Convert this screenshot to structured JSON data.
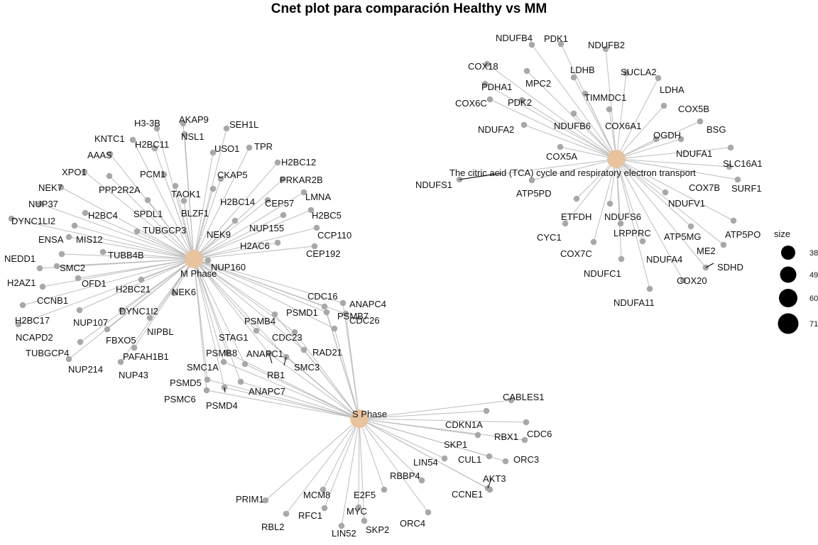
{
  "title": "Cnet plot para comparación Healthy vs MM",
  "colors": {
    "category": "#e8c39e",
    "gene": "#a8a8a8",
    "edge": "#bdbdbd"
  },
  "legend": {
    "title": "size",
    "values": [
      "38",
      "49",
      "60",
      "71"
    ]
  },
  "categories": [
    {
      "id": "M",
      "label": "M Phase"
    },
    {
      "id": "S",
      "label": "S Phase"
    },
    {
      "id": "T",
      "label": "The citric acid (TCA) cycle and respiratory electron transport"
    }
  ],
  "genes": [
    {
      "name": "H3-3B",
      "cats": [
        "M"
      ]
    },
    {
      "name": "AKAP9",
      "cats": [
        "M"
      ]
    },
    {
      "name": "SEH1L",
      "cats": [
        "M"
      ]
    },
    {
      "name": "KNTC1",
      "cats": [
        "M"
      ]
    },
    {
      "name": "NSL1",
      "cats": [
        "M"
      ]
    },
    {
      "name": "H2BC11",
      "cats": [
        "M"
      ]
    },
    {
      "name": "USO1",
      "cats": [
        "M"
      ]
    },
    {
      "name": "TPR",
      "cats": [
        "M"
      ]
    },
    {
      "name": "AAAS",
      "cats": [
        "M"
      ]
    },
    {
      "name": "H2BC12",
      "cats": [
        "M"
      ]
    },
    {
      "name": "XPO1",
      "cats": [
        "M"
      ]
    },
    {
      "name": "PCM1",
      "cats": [
        "M"
      ]
    },
    {
      "name": "CKAP5",
      "cats": [
        "M"
      ]
    },
    {
      "name": "PRKAR2B",
      "cats": [
        "M"
      ]
    },
    {
      "name": "NEK7",
      "cats": [
        "M"
      ]
    },
    {
      "name": "PPP2R2A",
      "cats": [
        "M"
      ]
    },
    {
      "name": "TAOK1",
      "cats": [
        "M"
      ]
    },
    {
      "name": "H2BC14",
      "cats": [
        "M"
      ]
    },
    {
      "name": "LMNA",
      "cats": [
        "M"
      ]
    },
    {
      "name": "NUP37",
      "cats": [
        "M"
      ]
    },
    {
      "name": "CEP57",
      "cats": [
        "M"
      ]
    },
    {
      "name": "H2BC4",
      "cats": [
        "M"
      ]
    },
    {
      "name": "SPDL1",
      "cats": [
        "M"
      ]
    },
    {
      "name": "BLZF1",
      "cats": [
        "M"
      ]
    },
    {
      "name": "H2BC5",
      "cats": [
        "M"
      ]
    },
    {
      "name": "DYNC1LI2",
      "cats": [
        "M"
      ]
    },
    {
      "name": "NUP155",
      "cats": [
        "M"
      ]
    },
    {
      "name": "TUBGCP3",
      "cats": [
        "M"
      ]
    },
    {
      "name": "ENSA",
      "cats": [
        "M"
      ]
    },
    {
      "name": "MIS12",
      "cats": [
        "M"
      ]
    },
    {
      "name": "NEK9",
      "cats": [
        "M"
      ]
    },
    {
      "name": "CCP110",
      "cats": [
        "M"
      ]
    },
    {
      "name": "H2AC6",
      "cats": [
        "M"
      ]
    },
    {
      "name": "TUBB4B",
      "cats": [
        "M"
      ]
    },
    {
      "name": "CEP192",
      "cats": [
        "M"
      ]
    },
    {
      "name": "NEDD1",
      "cats": [
        "M"
      ]
    },
    {
      "name": "NUP160",
      "cats": [
        "M"
      ]
    },
    {
      "name": "SMC2",
      "cats": [
        "M"
      ]
    },
    {
      "name": "H2AZ1",
      "cats": [
        "M"
      ]
    },
    {
      "name": "OFD1",
      "cats": [
        "M"
      ]
    },
    {
      "name": "H2BC21",
      "cats": [
        "M"
      ]
    },
    {
      "name": "CCNB1",
      "cats": [
        "M"
      ]
    },
    {
      "name": "NEK6",
      "cats": [
        "M"
      ]
    },
    {
      "name": "H2BC17",
      "cats": [
        "M"
      ]
    },
    {
      "name": "DYNC1I2",
      "cats": [
        "M"
      ]
    },
    {
      "name": "NUP107",
      "cats": [
        "M"
      ]
    },
    {
      "name": "NCAPD2",
      "cats": [
        "M"
      ]
    },
    {
      "name": "NIPBL",
      "cats": [
        "M"
      ]
    },
    {
      "name": "FBXO5",
      "cats": [
        "M"
      ]
    },
    {
      "name": "TUBGCP4",
      "cats": [
        "M"
      ]
    },
    {
      "name": "PAFAH1B1",
      "cats": [
        "M"
      ]
    },
    {
      "name": "NUP214",
      "cats": [
        "M"
      ]
    },
    {
      "name": "NUP43",
      "cats": [
        "M"
      ]
    },
    {
      "name": "CDC16",
      "cats": [
        "M",
        "S"
      ]
    },
    {
      "name": "ANAPC4",
      "cats": [
        "M",
        "S"
      ]
    },
    {
      "name": "PSMD1",
      "cats": [
        "M",
        "S"
      ]
    },
    {
      "name": "CDC26",
      "cats": [
        "M",
        "S"
      ]
    },
    {
      "name": "PSMB4",
      "cats": [
        "M",
        "S"
      ]
    },
    {
      "name": "PSMB7",
      "cats": [
        "M",
        "S"
      ]
    },
    {
      "name": "STAG1",
      "cats": [
        "M",
        "S"
      ]
    },
    {
      "name": "CDC23",
      "cats": [
        "M",
        "S"
      ]
    },
    {
      "name": "RAD21",
      "cats": [
        "M",
        "S"
      ]
    },
    {
      "name": "PSMB8",
      "cats": [
        "M",
        "S"
      ]
    },
    {
      "name": "ANAPC1",
      "cats": [
        "M",
        "S"
      ]
    },
    {
      "name": "SMC3",
      "cats": [
        "M",
        "S"
      ]
    },
    {
      "name": "SMC1A",
      "cats": [
        "M",
        "S"
      ]
    },
    {
      "name": "RB1",
      "cats": [
        "M",
        "S"
      ]
    },
    {
      "name": "PSMD5",
      "cats": [
        "M",
        "S"
      ]
    },
    {
      "name": "ANAPC7",
      "cats": [
        "M",
        "S"
      ]
    },
    {
      "name": "PSMC6",
      "cats": [
        "M",
        "S"
      ]
    },
    {
      "name": "PSMD4",
      "cats": [
        "M",
        "S"
      ]
    },
    {
      "name": "CABLES1",
      "cats": [
        "S"
      ]
    },
    {
      "name": "CDKN1A",
      "cats": [
        "S"
      ]
    },
    {
      "name": "RBX1",
      "cats": [
        "S"
      ]
    },
    {
      "name": "CDC6",
      "cats": [
        "S"
      ]
    },
    {
      "name": "SKP1",
      "cats": [
        "S"
      ]
    },
    {
      "name": "LIN54",
      "cats": [
        "S"
      ]
    },
    {
      "name": "CUL1",
      "cats": [
        "S"
      ]
    },
    {
      "name": "ORC3",
      "cats": [
        "S"
      ]
    },
    {
      "name": "AKT3",
      "cats": [
        "S"
      ]
    },
    {
      "name": "RBBP4",
      "cats": [
        "S"
      ]
    },
    {
      "name": "CCNE1",
      "cats": [
        "S"
      ]
    },
    {
      "name": "PRIM1",
      "cats": [
        "S"
      ]
    },
    {
      "name": "MCM8",
      "cats": [
        "S"
      ]
    },
    {
      "name": "E2F5",
      "cats": [
        "S"
      ]
    },
    {
      "name": "MYC",
      "cats": [
        "S"
      ]
    },
    {
      "name": "RFC1",
      "cats": [
        "S"
      ]
    },
    {
      "name": "ORC4",
      "cats": [
        "S"
      ]
    },
    {
      "name": "RBL2",
      "cats": [
        "S"
      ]
    },
    {
      "name": "SKP2",
      "cats": [
        "S"
      ]
    },
    {
      "name": "LIN52",
      "cats": [
        "S"
      ]
    },
    {
      "name": "NDUFB4",
      "cats": [
        "T"
      ]
    },
    {
      "name": "PDK1",
      "cats": [
        "T"
      ]
    },
    {
      "name": "NDUFB2",
      "cats": [
        "T"
      ]
    },
    {
      "name": "COX18",
      "cats": [
        "T"
      ]
    },
    {
      "name": "LDHB",
      "cats": [
        "T"
      ]
    },
    {
      "name": "SUCLA2",
      "cats": [
        "T"
      ]
    },
    {
      "name": "PDHA1",
      "cats": [
        "T"
      ]
    },
    {
      "name": "MPC2",
      "cats": [
        "T"
      ]
    },
    {
      "name": "LDHA",
      "cats": [
        "T"
      ]
    },
    {
      "name": "TIMMDC1",
      "cats": [
        "T"
      ]
    },
    {
      "name": "COX6C",
      "cats": [
        "T"
      ]
    },
    {
      "name": "PDK2",
      "cats": [
        "T"
      ]
    },
    {
      "name": "COX5B",
      "cats": [
        "T"
      ]
    },
    {
      "name": "NDUFB6",
      "cats": [
        "T"
      ]
    },
    {
      "name": "COX6A1",
      "cats": [
        "T"
      ]
    },
    {
      "name": "NDUFA2",
      "cats": [
        "T"
      ]
    },
    {
      "name": "BSG",
      "cats": [
        "T"
      ]
    },
    {
      "name": "OGDH",
      "cats": [
        "T"
      ]
    },
    {
      "name": "NDUFA1",
      "cats": [
        "T"
      ]
    },
    {
      "name": "COX5A",
      "cats": [
        "T"
      ]
    },
    {
      "name": "SLC16A1",
      "cats": [
        "T"
      ]
    },
    {
      "name": "NDUFS1",
      "cats": [
        "T"
      ]
    },
    {
      "name": "COX7B",
      "cats": [
        "T"
      ]
    },
    {
      "name": "SURF1",
      "cats": [
        "T"
      ]
    },
    {
      "name": "ATP5PD",
      "cats": [
        "T"
      ]
    },
    {
      "name": "NDUFV1",
      "cats": [
        "T"
      ]
    },
    {
      "name": "ETFDH",
      "cats": [
        "T"
      ]
    },
    {
      "name": "NDUFS6",
      "cats": [
        "T"
      ]
    },
    {
      "name": "ATP5PO",
      "cats": [
        "T"
      ]
    },
    {
      "name": "CYC1",
      "cats": [
        "T"
      ]
    },
    {
      "name": "LRPPRC",
      "cats": [
        "T"
      ]
    },
    {
      "name": "ATP5MG",
      "cats": [
        "T"
      ]
    },
    {
      "name": "ME2",
      "cats": [
        "T"
      ]
    },
    {
      "name": "COX7C",
      "cats": [
        "T"
      ]
    },
    {
      "name": "NDUFA4",
      "cats": [
        "T"
      ]
    },
    {
      "name": "SDHD",
      "cats": [
        "T"
      ]
    },
    {
      "name": "NDUFC1",
      "cats": [
        "T"
      ]
    },
    {
      "name": "COX20",
      "cats": [
        "T"
      ]
    },
    {
      "name": "NDUFA11",
      "cats": [
        "T"
      ]
    }
  ]
}
